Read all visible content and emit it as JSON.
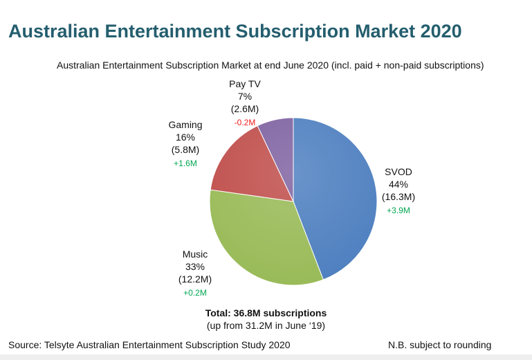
{
  "page": {
    "title": "Australian Entertainment Subscription Market 2020",
    "source": "Source: Telsyte Australian Entertainment Subscription Study 2020",
    "note": "N.B. subject to rounding"
  },
  "chart_data": {
    "type": "pie",
    "title": "Australian Entertainment Subscription Market 2020",
    "subtitle": "Australian Entertainment Subscription Market at end June 2020 (incl. paid + non-paid subscriptions)",
    "slices": [
      {
        "name": "SVOD",
        "percent": "44%",
        "value": "(16.3M)",
        "change": "+3.9M",
        "amount": 16.3,
        "color": "#4f80c0",
        "change_color": "#00a651"
      },
      {
        "name": "Music",
        "percent": "33%",
        "value": "(12.2M)",
        "change": "+0.2M",
        "amount": 12.2,
        "color": "#9abb59",
        "change_color": "#00a651"
      },
      {
        "name": "Gaming",
        "percent": "16%",
        "value": "(5.8M)",
        "change": "+1.6M",
        "amount": 5.8,
        "color": "#c0504d",
        "change_color": "#00a651"
      },
      {
        "name": "Pay TV",
        "percent": "7%",
        "value": "(2.6M)",
        "change": "-0.2M",
        "amount": 2.6,
        "color": "#8064a2",
        "change_color": "#ee1c1c"
      }
    ],
    "total_label": "Total: 36.8M subscriptions",
    "total_sub": "(up from 31.2M in June ‘19)"
  }
}
